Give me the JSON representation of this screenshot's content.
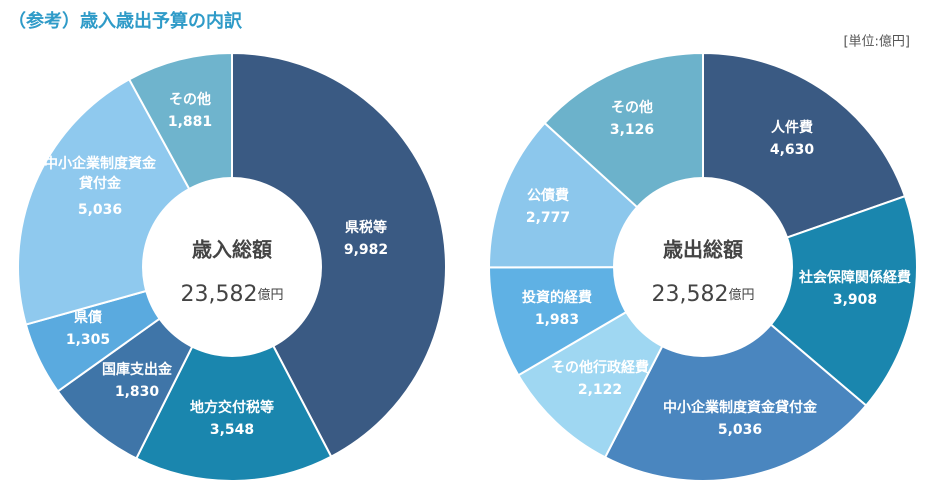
{
  "title": "（参考）歳入歳出予算の内訳",
  "unit": "[単位:億円]",
  "chart_data": [
    {
      "type": "donut",
      "center_label": "歳入総額",
      "center_value": 23582,
      "center_value_label": "23,582",
      "center_unit": "億円",
      "categories": [
        "県税等",
        "地方交付税等",
        "国庫支出金",
        "県債",
        "中小企業制度資金貸付金",
        "その他"
      ],
      "values": [
        9982,
        3548,
        1830,
        1305,
        5036,
        1881
      ],
      "value_labels": [
        "9,982",
        "3,548",
        "1,830",
        "1,305",
        "5,036",
        "1,881"
      ],
      "colors": [
        "#3a5a83",
        "#1a86ae",
        "#3f75a8",
        "#5aaadf",
        "#8fc9ee",
        "#6fb4cd"
      ]
    },
    {
      "type": "donut",
      "center_label": "歳出総額",
      "center_value": 23582,
      "center_value_label": "23,582",
      "center_unit": "億円",
      "categories": [
        "人件費",
        "社会保障関係経費",
        "中小企業制度資金貸付金",
        "その他行政経費",
        "投資的経費",
        "公債費",
        "その他"
      ],
      "values": [
        4630,
        3908,
        5036,
        2122,
        1983,
        2777,
        3126
      ],
      "value_labels": [
        "4,630",
        "3,908",
        "5,036",
        "2,122",
        "1,983",
        "2,777",
        "3,126"
      ],
      "colors": [
        "#3a5a83",
        "#1a86ae",
        "#4a86bf",
        "#9fd7f2",
        "#5fb1e4",
        "#8cc7ec",
        "#6cb2cb"
      ]
    }
  ]
}
